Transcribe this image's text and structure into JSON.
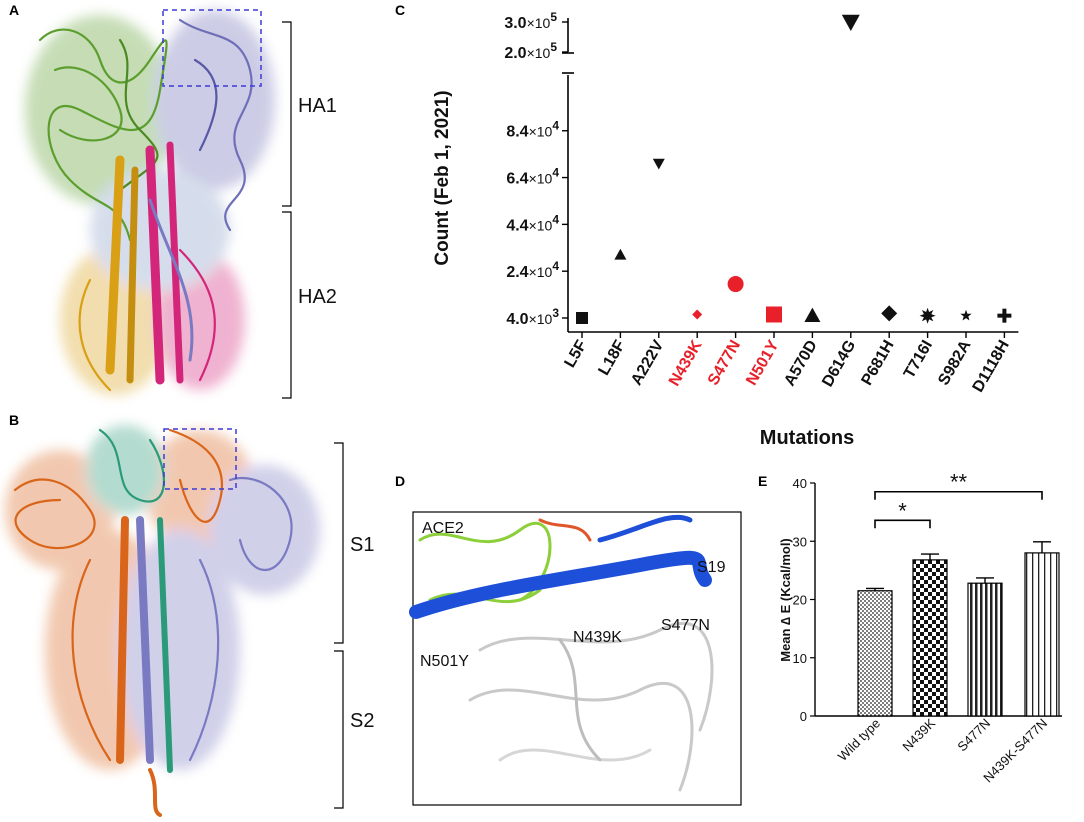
{
  "panels": {
    "a": {
      "letter": "A",
      "labels": [
        "HA1",
        "HA2"
      ]
    },
    "b": {
      "letter": "B",
      "labels": [
        "S1",
        "S2"
      ]
    },
    "c": {
      "letter": "C"
    },
    "d": {
      "letter": "D",
      "labels": [
        "ACE2",
        "S19",
        "S477N",
        "N439K",
        "N501Y"
      ]
    },
    "e": {
      "letter": "E"
    }
  },
  "colors": {
    "highlight": "#e8202a",
    "black": "#111111",
    "dashed_box": "#3b3bd6",
    "ha_green": "#5c9e2e",
    "ha_purple": "#6f6fb8",
    "ha_gold": "#d9a016",
    "ha_magenta": "#d3267a",
    "s_orange": "#d9651a",
    "s_teal": "#2a9a78",
    "s_purple": "#7a7ac2",
    "d_blue": "#1e4fd8",
    "d_green": "#8ccf3a"
  },
  "chart_data": [
    {
      "panel": "C",
      "type": "scatter",
      "xlabel": "Mutations",
      "ylabel": "Count (Feb 1, 2021)",
      "categories": [
        "L5F",
        "L18F",
        "A222V",
        "N439K",
        "S477N",
        "N501Y",
        "A570D",
        "D614G",
        "P681H",
        "T716I",
        "S982A",
        "D1118H"
      ],
      "highlighted": [
        "N439K",
        "S477N",
        "N501Y"
      ],
      "values": [
        4000,
        31000,
        70000,
        5500,
        18500,
        5500,
        5000,
        300000,
        6000,
        5000,
        5000,
        5000
      ],
      "markers": [
        "square",
        "triangle-up",
        "triangle-down",
        "diamond",
        "circle",
        "square",
        "triangle-up",
        "triangle-down",
        "diamond",
        "star-burst",
        "star",
        "cross"
      ],
      "yticks_upper": [
        {
          "value": 200000,
          "mant": "2.0",
          "exp": "5"
        },
        {
          "value": 300000,
          "mant": "3.0",
          "exp": "5"
        }
      ],
      "yticks_lower": [
        {
          "value": 4000,
          "mant": "4.0",
          "exp": "3"
        },
        {
          "value": 24000,
          "mant": "2.4",
          "exp": "4"
        },
        {
          "value": 44000,
          "mant": "4.4",
          "exp": "4"
        },
        {
          "value": 64000,
          "mant": "6.4",
          "exp": "4"
        },
        {
          "value": 84000,
          "mant": "8.4",
          "exp": "4"
        }
      ],
      "y_break": true,
      "ylim_lower": [
        4000,
        95000
      ],
      "ylim_upper": [
        200000,
        300000
      ]
    },
    {
      "panel": "E",
      "type": "bar",
      "ylabel": "Mean ∆ E (Kcal/mol)",
      "categories": [
        "Wild type",
        "N439K",
        "S477N",
        "N439K-S477N"
      ],
      "values": [
        21.5,
        26.8,
        22.8,
        28.0
      ],
      "errors": [
        0.4,
        1.0,
        0.9,
        1.9
      ],
      "patterns": [
        "dots",
        "checker",
        "vstripes",
        "vlines"
      ],
      "ylim": [
        0,
        40
      ],
      "yticks": [
        "0",
        "10",
        "20",
        "30",
        "40"
      ],
      "yticks_values": [
        0,
        10,
        20,
        30,
        40
      ],
      "significance": [
        {
          "from": 0,
          "to": 1,
          "label": "*"
        },
        {
          "from": 0,
          "to": 3,
          "label": "**"
        }
      ]
    }
  ]
}
